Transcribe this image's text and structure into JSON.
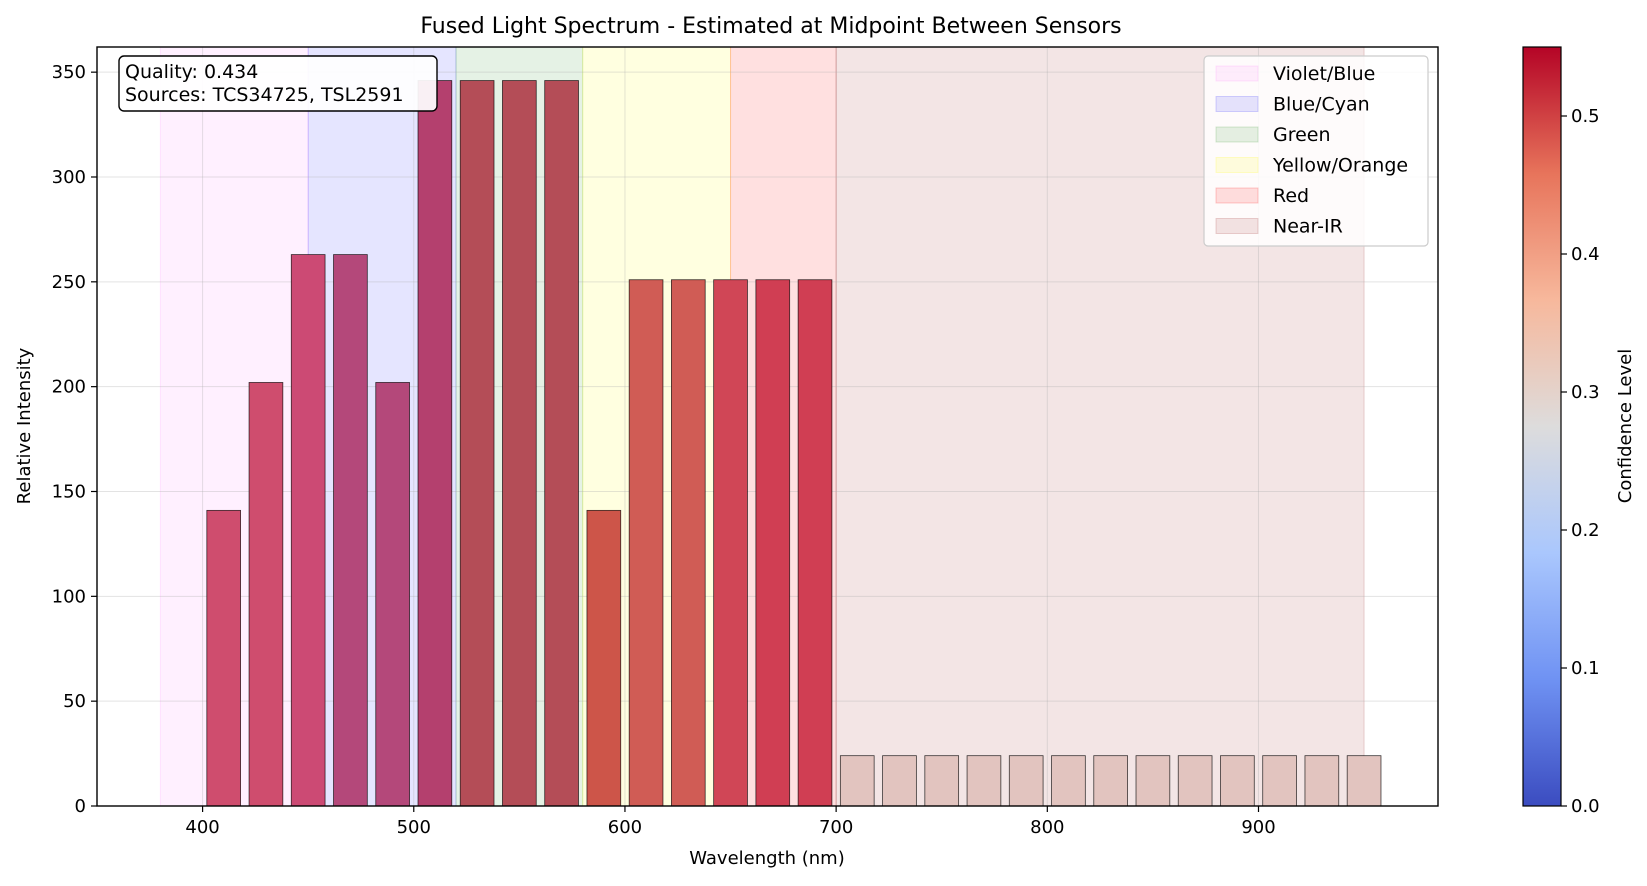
{
  "chart_data": {
    "type": "bar",
    "title": "Fused Light Spectrum - Estimated at Midpoint Between Sensors",
    "xlabel": "Wavelength (nm)",
    "ylabel": "Relative Intensity",
    "xlim": [
      350,
      985
    ],
    "ylim": [
      0,
      362
    ],
    "xticks": [
      400,
      500,
      600,
      700,
      800,
      900
    ],
    "yticks": [
      0,
      50,
      100,
      150,
      200,
      250,
      300,
      350
    ],
    "grid": true,
    "bar_width_nm": 16,
    "x": [
      410,
      430,
      450,
      470,
      490,
      510,
      530,
      550,
      570,
      590,
      610,
      630,
      650,
      670,
      690,
      710,
      730,
      750,
      770,
      790,
      810,
      830,
      850,
      870,
      890,
      910,
      930,
      950
    ],
    "values": [
      141,
      202,
      263,
      263,
      202,
      346,
      346,
      346,
      346,
      141,
      251,
      251,
      251,
      251,
      251,
      24,
      24,
      24,
      24,
      24,
      24,
      24,
      24,
      24,
      24,
      24,
      24,
      24
    ],
    "bar_colors": [
      "#cf4d6e",
      "#cf4d6e",
      "#cc4a74",
      "#b4487a",
      "#b4487a",
      "#b4406e",
      "#b44d57",
      "#b44d57",
      "#b44d57",
      "#cd5549",
      "#d05c55",
      "#d05c55",
      "#d04656",
      "#d03e53",
      "#d03e53",
      "#e2c4bf",
      "#e2c4bf",
      "#e2c4bf",
      "#e2c4bf",
      "#e2c4bf",
      "#e2c4bf",
      "#e2c4bf",
      "#e2c4bf",
      "#e2c4bf",
      "#e2c4bf",
      "#e2c4bf",
      "#e2c4bf",
      "#e2c4bf"
    ],
    "bands": [
      {
        "name": "Violet/Blue",
        "range": [
          380,
          450
        ],
        "color": "#ff00ff",
        "alpha": 0.06
      },
      {
        "name": "Blue/Cyan",
        "range": [
          450,
          520
        ],
        "color": "#0000ff",
        "alpha": 0.1
      },
      {
        "name": "Green",
        "range": [
          520,
          580
        ],
        "color": "#008000",
        "alpha": 0.1
      },
      {
        "name": "Yellow/Orange",
        "range": [
          580,
          650
        ],
        "color": "#ffff00",
        "alpha": 0.12
      },
      {
        "name": "Red",
        "range": [
          650,
          700
        ],
        "color": "#ff0000",
        "alpha": 0.12
      },
      {
        "name": "Near-IR",
        "range": [
          700,
          950
        ],
        "color": "#8b0000",
        "alpha": 0.1
      }
    ],
    "legend_position": "top-right",
    "annotation": {
      "quality": "Quality: 0.434",
      "sources": "Sources: TCS34725, TSL2591"
    },
    "colorbar": {
      "label": "Confidence Level",
      "range": [
        0,
        0.55
      ],
      "ticks": [
        "0.0",
        "0.1",
        "0.2",
        "0.3",
        "0.4",
        "0.5"
      ],
      "tick_values": [
        0,
        0.1,
        0.2,
        0.3,
        0.4,
        0.5
      ],
      "colormap": [
        "#3b4cc0",
        "#6f92f3",
        "#aac7fd",
        "#dddcdc",
        "#f7b89c",
        "#e7745b",
        "#b40426"
      ]
    }
  }
}
